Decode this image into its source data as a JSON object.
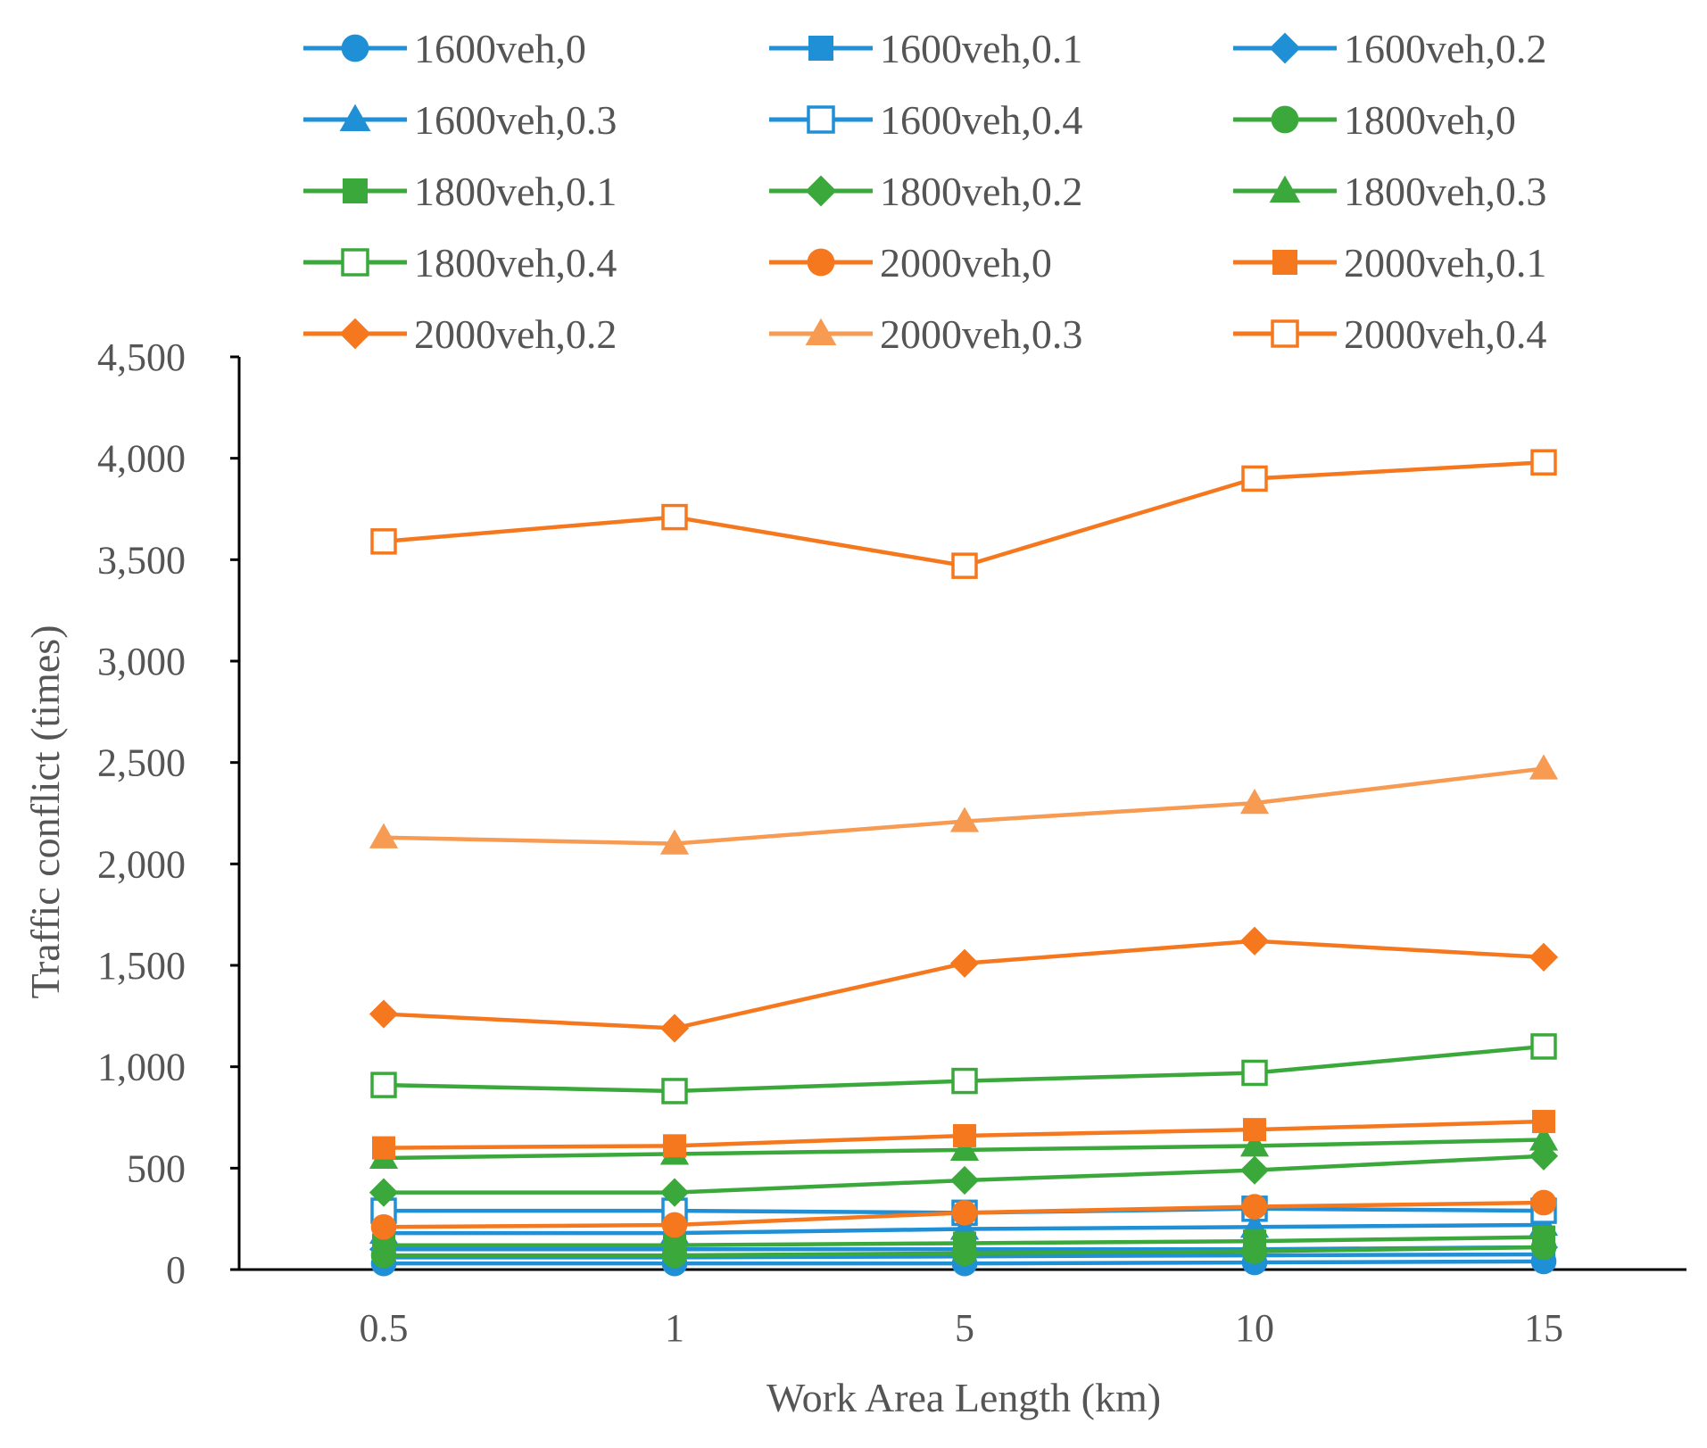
{
  "chart_data": {
    "type": "line",
    "title": "",
    "xlabel": "Work Area Length (km)",
    "ylabel": "Traffic conflict (times)",
    "categories": [
      "0.5",
      "1",
      "5",
      "10",
      "15"
    ],
    "ylim": [
      0,
      4500
    ],
    "yticks": [
      0,
      500,
      1000,
      1500,
      2000,
      2500,
      3000,
      3500,
      4000,
      4500
    ],
    "ytick_labels": [
      "0",
      "500",
      "1,000",
      "1,500",
      "2,000",
      "2,500",
      "3,000",
      "3,500",
      "4,000",
      "4,500"
    ],
    "grid": false,
    "legend_position": "top",
    "series": [
      {
        "name": "1600veh,0",
        "color": "#1f8fd6",
        "marker": "circle",
        "values": [
          30,
          30,
          30,
          35,
          40
        ]
      },
      {
        "name": "1600veh,0.1",
        "color": "#1f8fd6",
        "marker": "square",
        "values": [
          60,
          60,
          65,
          70,
          75
        ]
      },
      {
        "name": "1600veh,0.2",
        "color": "#1f8fd6",
        "marker": "diamond",
        "values": [
          100,
          100,
          100,
          100,
          110
        ]
      },
      {
        "name": "1600veh,0.3",
        "color": "#1f8fd6",
        "marker": "triangle",
        "values": [
          180,
          180,
          200,
          210,
          220
        ]
      },
      {
        "name": "1600veh,0.4",
        "color": "#1f8fd6",
        "marker": "square-open",
        "values": [
          290,
          290,
          280,
          300,
          290
        ]
      },
      {
        "name": "1800veh,0",
        "color": "#3aa83a",
        "marker": "circle",
        "values": [
          70,
          70,
          80,
          90,
          110
        ]
      },
      {
        "name": "1800veh,0.1",
        "color": "#3aa83a",
        "marker": "square",
        "values": [
          120,
          120,
          130,
          140,
          160
        ]
      },
      {
        "name": "1800veh,0.2",
        "color": "#3aa83a",
        "marker": "diamond",
        "values": [
          380,
          380,
          440,
          490,
          560
        ]
      },
      {
        "name": "1800veh,0.3",
        "color": "#3aa83a",
        "marker": "triangle",
        "values": [
          550,
          570,
          590,
          610,
          640
        ]
      },
      {
        "name": "1800veh,0.4",
        "color": "#3aa83a",
        "marker": "square-open",
        "values": [
          910,
          880,
          930,
          970,
          1100
        ]
      },
      {
        "name": "2000veh,0",
        "color": "#f5781f",
        "marker": "circle",
        "values": [
          210,
          220,
          280,
          310,
          330
        ]
      },
      {
        "name": "2000veh,0.1",
        "color": "#f5781f",
        "marker": "square",
        "values": [
          600,
          610,
          660,
          690,
          730
        ]
      },
      {
        "name": "2000veh,0.2",
        "color": "#f5781f",
        "marker": "diamond",
        "values": [
          1260,
          1190,
          1510,
          1620,
          1540
        ]
      },
      {
        "name": "2000veh,0.3",
        "color": "#f79a52",
        "marker": "triangle",
        "values": [
          2130,
          2100,
          2210,
          2300,
          2470
        ]
      },
      {
        "name": "2000veh,0.4",
        "color": "#f5781f",
        "marker": "square-open",
        "values": [
          3590,
          3710,
          3470,
          3900,
          3980
        ]
      }
    ]
  }
}
